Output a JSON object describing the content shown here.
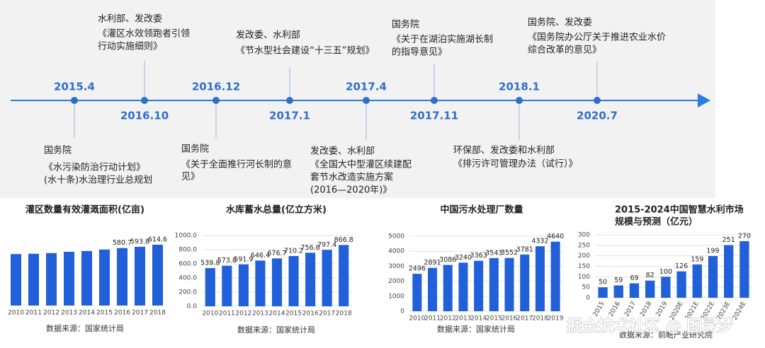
{
  "timeline": {
    "events": [
      {
        "date": "2015.4",
        "lines": [
          "国务院",
          "《水污染防治行动计划》",
          "(水十条)水治理行业总规划"
        ]
      },
      {
        "date": "2016.10",
        "lines": [
          "水利部、发改委",
          "《灌区水效领跑者引领",
          "行动实施细则》"
        ]
      },
      {
        "date": "2016.12",
        "lines": [
          "国务院",
          "《关于全面推行河长制的意",
          "见》"
        ]
      },
      {
        "date": "2017.1",
        "lines": [
          "发改委、水利部",
          "《节水型社会建设“十三五”规划》"
        ]
      },
      {
        "date": "2017.4",
        "lines": [
          "发改委、水利部",
          "《全国大中型灌区续建配",
          "套节水改造实施方案",
          "(2016—2020年)》"
        ]
      },
      {
        "date": "2017.11",
        "lines": [
          "国务院",
          "《关于在湖泊实施湖长制",
          "的指导意见》"
        ]
      },
      {
        "date": "2018.1",
        "lines": [
          "环保部、发改委和水利部",
          "《排污许可管理办法（试行）》"
        ]
      },
      {
        "date": "2020.7",
        "lines": [
          "国务院、发改委",
          "《国务院办公厅关于推进农业水价",
          "综合改革的意见》"
        ]
      }
    ]
  },
  "chart_data": [
    {
      "type": "bar",
      "title": [
        "灌区数量有效灌溉面积(亿亩)"
      ],
      "color": "#2160d8",
      "categories": [
        "2010",
        "2011",
        "2012",
        "2013",
        "2014",
        "2015",
        "2016",
        "2017",
        "2018"
      ],
      "values": [
        520,
        523,
        530,
        543,
        551,
        566,
        580.7,
        593.8,
        614.6
      ],
      "value_labels": [
        null,
        null,
        null,
        null,
        null,
        null,
        "580.7",
        "593.8",
        "614.6"
      ],
      "ylim": [
        0,
        700
      ],
      "yticks": [],
      "grid": false,
      "source": "数据来源：国家统计局"
    },
    {
      "type": "bar",
      "title": [
        "水库蓄水总量(亿立方米)"
      ],
      "color": "#2160d8",
      "categories": [
        "2010",
        "2011",
        "2012",
        "2013",
        "2014",
        "2015",
        "2016",
        "2017",
        "2018"
      ],
      "values": [
        539.8,
        573.8,
        591.9,
        646.4,
        676.7,
        710.2,
        756.6,
        797.4,
        866.8
      ],
      "ylim": [
        0,
        1000
      ],
      "yticks": [
        {
          "value": 0,
          "label": "0.0"
        },
        {
          "value": 200,
          "label": "200.0"
        },
        {
          "value": 400,
          "label": "400.0"
        },
        {
          "value": 600,
          "label": "600.0"
        },
        {
          "value": 800,
          "label": "800.0"
        },
        {
          "value": 1000,
          "label": "1000.0"
        }
      ],
      "grid": true,
      "source": "数据来源：国家统计局"
    },
    {
      "type": "bar",
      "title": [
        "中国污水处理厂数量"
      ],
      "color": "#2160d8",
      "categories": [
        "2010",
        "2011",
        "2012",
        "2013",
        "2014",
        "2015",
        "2016",
        "2017",
        "2018",
        "2019"
      ],
      "values": [
        2496,
        2891,
        3086,
        3240,
        3363,
        3543,
        3552,
        3781,
        4332,
        4640
      ],
      "ylim": [
        0,
        5000
      ],
      "yticks": [
        0,
        1000,
        2000,
        3000,
        4000,
        5000
      ],
      "grid": true,
      "source": "数据来源：国家统计局"
    },
    {
      "type": "bar",
      "title": [
        "2015-2024中国智慧水利市场",
        "规模与预测（亿元）"
      ],
      "color": "#2160d8",
      "categories": [
        "2015",
        "2016",
        "2017",
        "2018",
        "2019",
        "2020E",
        "2021E",
        "2022E",
        "2023E",
        "2024E"
      ],
      "values": [
        50,
        59,
        69,
        82,
        100,
        126,
        159,
        199,
        251,
        270
      ],
      "ylim": [
        0,
        300
      ],
      "yticks": [
        0,
        50,
        100,
        150,
        200,
        250,
        300
      ],
      "grid": true,
      "source": "数据来源：前瞻产业研究院"
    }
  ],
  "watermark": "掘金技术社区 @ 图灵梦"
}
